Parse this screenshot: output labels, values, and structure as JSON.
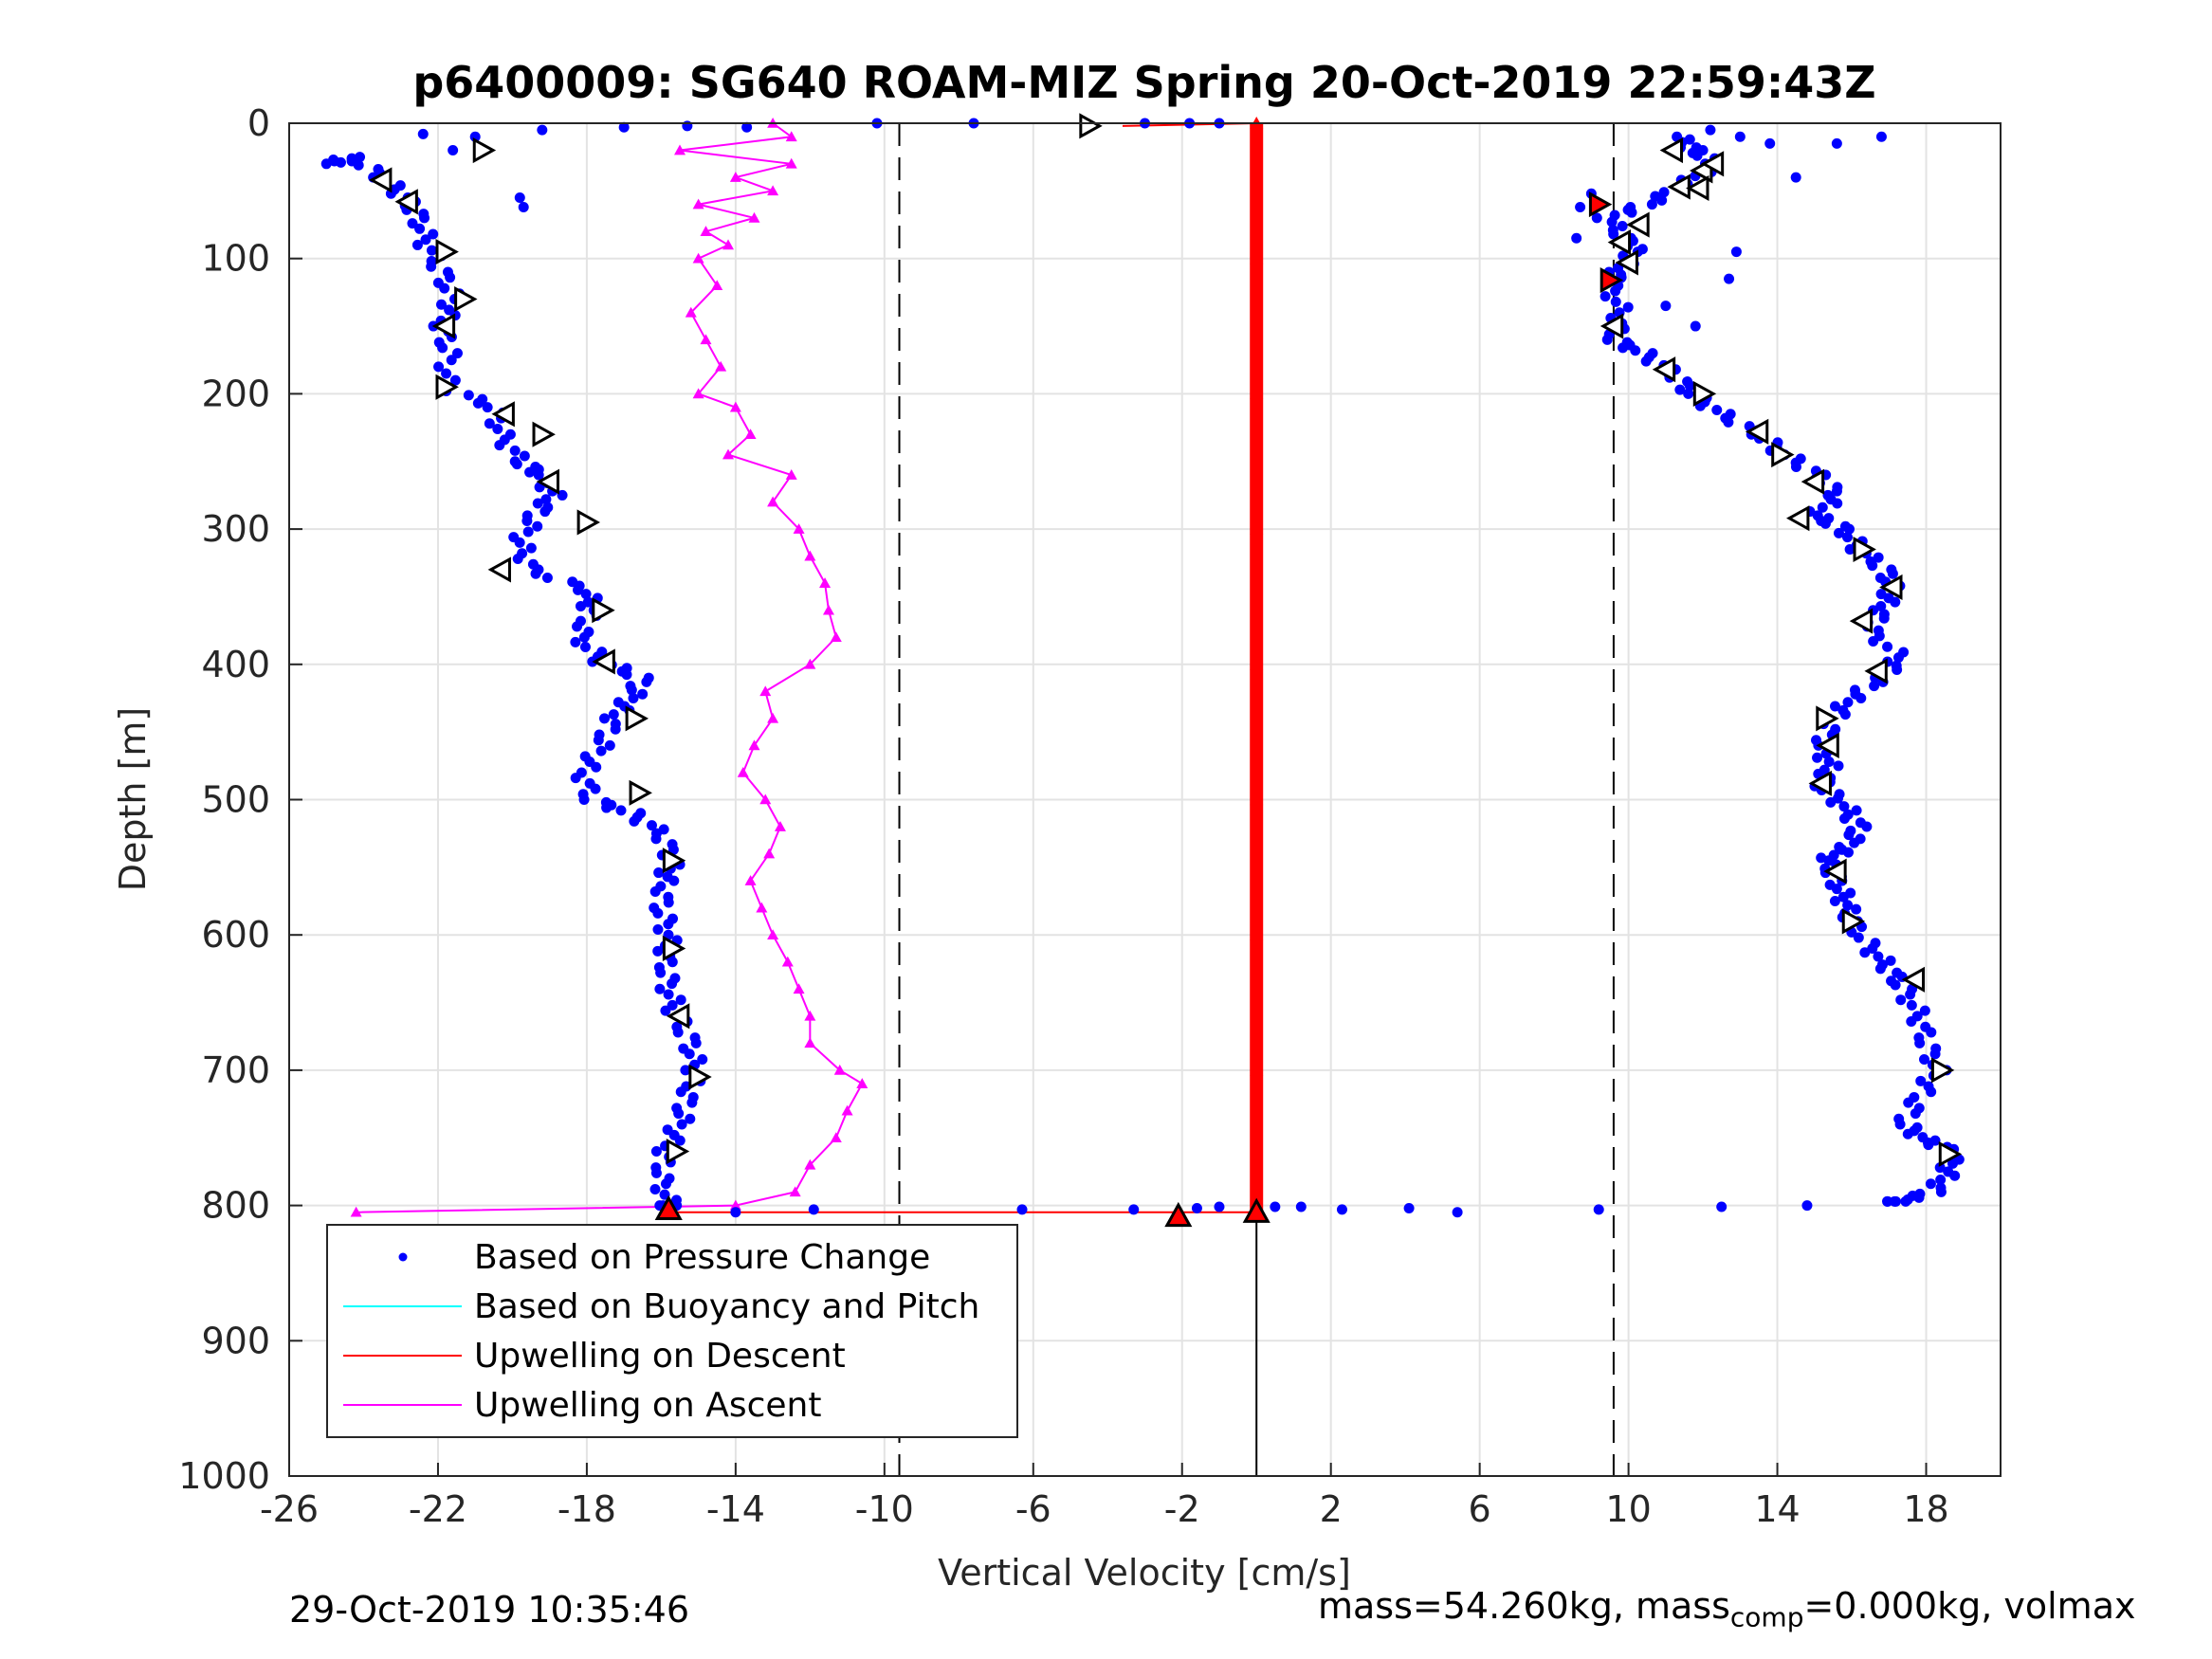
{
  "chart_data": {
    "type": "scatter",
    "title": "p6400009: SG640 ROAM-MIZ Spring 20-Oct-2019 22:59:43Z",
    "xlabel": "Vertical Velocity [cm/s]",
    "ylabel": "Depth [m]",
    "xlim": [
      -26,
      20
    ],
    "ylim": [
      0,
      1000
    ],
    "y_reversed": true,
    "grid": true,
    "x_ticks": [
      -26,
      -22,
      -18,
      -14,
      -10,
      -6,
      -2,
      2,
      6,
      10,
      14,
      18
    ],
    "y_ticks": [
      0,
      100,
      200,
      300,
      400,
      500,
      600,
      700,
      800,
      900,
      1000
    ],
    "legend_position": "bottom-left",
    "colors": {
      "pressure": "#0000ff",
      "buoyancy": "#00ffff",
      "descent": "#ff0000",
      "ascent": "#ff00ff",
      "reference": "#000000",
      "grid": "#e3e3e3"
    },
    "reference_lines": {
      "dashed_x": [
        -9.6,
        9.6
      ],
      "solid_x": 0,
      "solid_y_range": [
        805,
        1000
      ]
    },
    "series": [
      {
        "name": "Based on Pressure Change",
        "style": "dots",
        "descent": [
          [
            -25.0,
            30
          ],
          [
            -24.3,
            25
          ],
          [
            -23.5,
            40
          ],
          [
            -22.9,
            55
          ],
          [
            -22.5,
            70
          ],
          [
            -22.3,
            90
          ],
          [
            -21.9,
            110
          ],
          [
            -21.6,
            130
          ],
          [
            -21.9,
            150
          ],
          [
            -21.7,
            170
          ],
          [
            -21.8,
            195
          ],
          [
            -20.5,
            210
          ],
          [
            -20.3,
            230
          ],
          [
            -19.8,
            250
          ],
          [
            -19.2,
            260
          ],
          [
            -18.9,
            275
          ],
          [
            -19.4,
            290
          ],
          [
            -19.8,
            310
          ],
          [
            -19.5,
            330
          ],
          [
            -18.0,
            345
          ],
          [
            -17.9,
            360
          ],
          [
            -18.2,
            380
          ],
          [
            -17.6,
            398
          ],
          [
            -16.5,
            410
          ],
          [
            -16.8,
            425
          ],
          [
            -17.3,
            440
          ],
          [
            -17.6,
            460
          ],
          [
            -18.1,
            480
          ],
          [
            -17.9,
            500
          ],
          [
            -16.8,
            510
          ],
          [
            -16.0,
            525
          ],
          [
            -15.7,
            545
          ],
          [
            -15.9,
            560
          ],
          [
            -16.0,
            580
          ],
          [
            -15.8,
            600
          ],
          [
            -15.9,
            620
          ],
          [
            -15.8,
            640
          ],
          [
            -15.6,
            660
          ],
          [
            -15.2,
            680
          ],
          [
            -15.1,
            700
          ],
          [
            -15.3,
            720
          ],
          [
            -15.5,
            740
          ],
          [
            -15.9,
            760
          ],
          [
            -16.0,
            780
          ],
          [
            -15.8,
            800
          ]
        ],
        "ascent": [
          [
            11.3,
            10
          ],
          [
            11.8,
            20
          ],
          [
            12.3,
            30
          ],
          [
            11.5,
            45
          ],
          [
            10.5,
            60
          ],
          [
            9.4,
            70
          ],
          [
            9.9,
            85
          ],
          [
            10.2,
            95
          ],
          [
            9.7,
            110
          ],
          [
            9.5,
            120
          ],
          [
            9.8,
            140
          ],
          [
            9.6,
            160
          ],
          [
            10.4,
            170
          ],
          [
            11.2,
            185
          ],
          [
            11.7,
            200
          ],
          [
            12.5,
            215
          ],
          [
            13.5,
            230
          ],
          [
            14.2,
            245
          ],
          [
            15.1,
            260
          ],
          [
            15.6,
            275
          ],
          [
            15.0,
            290
          ],
          [
            15.8,
            300
          ],
          [
            16.2,
            315
          ],
          [
            16.9,
            330
          ],
          [
            17.1,
            345
          ],
          [
            16.8,
            360
          ],
          [
            16.5,
            375
          ],
          [
            17.3,
            395
          ],
          [
            16.8,
            410
          ],
          [
            16.0,
            425
          ],
          [
            15.5,
            440
          ],
          [
            15.2,
            460
          ],
          [
            15.4,
            475
          ],
          [
            15.2,
            490
          ],
          [
            15.8,
            505
          ],
          [
            16.2,
            520
          ],
          [
            15.9,
            535
          ],
          [
            15.3,
            545
          ],
          [
            15.6,
            560
          ],
          [
            15.8,
            575
          ],
          [
            16.0,
            590
          ],
          [
            16.5,
            610
          ],
          [
            17.0,
            625
          ],
          [
            17.4,
            640
          ],
          [
            17.8,
            660
          ],
          [
            18.0,
            680
          ],
          [
            18.3,
            700
          ],
          [
            17.8,
            720
          ],
          [
            17.4,
            740
          ],
          [
            18.0,
            752
          ],
          [
            18.7,
            760
          ],
          [
            18.6,
            775
          ],
          [
            18.2,
            790
          ],
          [
            17.2,
            797
          ]
        ],
        "surface_bottom": [
          [
            -10.2,
            0
          ],
          [
            -7.6,
            0
          ],
          [
            -3.0,
            0
          ],
          [
            -1.8,
            0
          ],
          [
            -1.0,
            0
          ],
          [
            -6.3,
            803
          ],
          [
            -3.3,
            803
          ],
          [
            -1.6,
            802
          ],
          [
            -1.0,
            801
          ],
          [
            0.5,
            801
          ],
          [
            1.2,
            801
          ],
          [
            2.3,
            803
          ],
          [
            4.1,
            802
          ],
          [
            5.4,
            805
          ],
          [
            9.2,
            803
          ],
          [
            12.5,
            801
          ],
          [
            14.8,
            800
          ],
          [
            -14.0,
            805
          ],
          [
            -11.9,
            803
          ],
          [
            -21.0,
            10
          ],
          [
            -21.6,
            20
          ],
          [
            -22.4,
            8
          ],
          [
            -19.2,
            5
          ],
          [
            -17.0,
            3
          ],
          [
            -15.3,
            2
          ],
          [
            -13.7,
            3
          ],
          [
            -19.8,
            55
          ],
          [
            -19.7,
            62
          ],
          [
            12.2,
            5
          ],
          [
            13.0,
            10
          ],
          [
            13.8,
            15
          ],
          [
            15.6,
            15
          ],
          [
            16.8,
            10
          ],
          [
            14.5,
            40
          ],
          [
            12.9,
            95
          ],
          [
            12.7,
            115
          ],
          [
            11.0,
            135
          ],
          [
            11.8,
            150
          ],
          [
            8.6,
            85
          ],
          [
            8.7,
            62
          ],
          [
            9.0,
            52
          ],
          [
            11.4,
            18
          ]
        ]
      },
      {
        "name": "Based on Buoyancy and Pitch",
        "style": "line",
        "points": []
      },
      {
        "name": "Upwelling on Descent",
        "style": "line-markers",
        "points": [
          [
            0.0,
            0
          ],
          [
            0.0,
            100
          ],
          [
            0.0,
            200
          ],
          [
            0.0,
            300
          ],
          [
            0.0,
            400
          ],
          [
            0.0,
            500
          ],
          [
            0.0,
            600
          ],
          [
            0.0,
            700
          ],
          [
            0.0,
            800
          ]
        ]
      },
      {
        "name": "Upwelling on Ascent",
        "style": "line-markers",
        "points": [
          [
            -13.0,
            0
          ],
          [
            -12.5,
            10
          ],
          [
            -15.5,
            20
          ],
          [
            -12.5,
            30
          ],
          [
            -14.0,
            40
          ],
          [
            -13.0,
            50
          ],
          [
            -15.0,
            60
          ],
          [
            -13.5,
            70
          ],
          [
            -14.8,
            80
          ],
          [
            -14.2,
            90
          ],
          [
            -15.0,
            100
          ],
          [
            -14.5,
            120
          ],
          [
            -15.2,
            140
          ],
          [
            -14.8,
            160
          ],
          [
            -14.4,
            180
          ],
          [
            -15.0,
            200
          ],
          [
            -14.0,
            210
          ],
          [
            -13.6,
            230
          ],
          [
            -14.2,
            245
          ],
          [
            -12.5,
            260
          ],
          [
            -13.0,
            280
          ],
          [
            -12.3,
            300
          ],
          [
            -12.0,
            320
          ],
          [
            -11.6,
            340
          ],
          [
            -11.5,
            360
          ],
          [
            -11.3,
            380
          ],
          [
            -12.0,
            400
          ],
          [
            -13.2,
            420
          ],
          [
            -13.0,
            440
          ],
          [
            -13.5,
            460
          ],
          [
            -13.8,
            480
          ],
          [
            -13.2,
            500
          ],
          [
            -12.8,
            520
          ],
          [
            -13.1,
            540
          ],
          [
            -13.6,
            560
          ],
          [
            -13.3,
            580
          ],
          [
            -13.0,
            600
          ],
          [
            -12.6,
            620
          ],
          [
            -12.3,
            640
          ],
          [
            -12.0,
            660
          ],
          [
            -12.0,
            680
          ],
          [
            -11.2,
            700
          ],
          [
            -10.6,
            710
          ],
          [
            -11.0,
            730
          ],
          [
            -11.3,
            750
          ],
          [
            -12.0,
            770
          ],
          [
            -12.4,
            790
          ],
          [
            -14.0,
            800
          ],
          [
            -24.2,
            805
          ]
        ]
      }
    ],
    "glider_markers": {
      "right": [
        [
          -4.5,
          2
        ],
        [
          -20.8,
          20
        ],
        [
          -21.8,
          95
        ],
        [
          -21.3,
          130
        ],
        [
          -21.8,
          195
        ],
        [
          -19.2,
          230
        ],
        [
          -18.0,
          295
        ],
        [
          -17.6,
          360
        ],
        [
          -16.7,
          440
        ],
        [
          -16.6,
          495
        ],
        [
          -15.7,
          545
        ],
        [
          -15.7,
          610
        ],
        [
          -15.0,
          705
        ],
        [
          -15.6,
          760
        ],
        [
          12.0,
          200
        ],
        [
          14.1,
          245
        ],
        [
          16.3,
          315
        ],
        [
          15.3,
          440
        ],
        [
          16.0,
          590
        ],
        [
          18.4,
          700
        ],
        [
          18.6,
          762
        ]
      ],
      "left": [
        [
          -23.5,
          42
        ],
        [
          -22.8,
          58
        ],
        [
          -21.8,
          150
        ],
        [
          -20.2,
          215
        ],
        [
          -19.0,
          265
        ],
        [
          -20.3,
          330
        ],
        [
          -17.5,
          398
        ],
        [
          -15.5,
          660
        ],
        [
          11.2,
          20
        ],
        [
          12.0,
          35
        ],
        [
          11.4,
          47
        ],
        [
          10.3,
          75
        ],
        [
          9.8,
          88
        ],
        [
          10.0,
          103
        ],
        [
          9.6,
          150
        ],
        [
          11.0,
          182
        ],
        [
          13.5,
          228
        ],
        [
          15.0,
          265
        ],
        [
          14.6,
          292
        ],
        [
          17.1,
          343
        ],
        [
          16.3,
          368
        ],
        [
          16.7,
          405
        ],
        [
          15.4,
          460
        ],
        [
          15.2,
          488
        ],
        [
          15.6,
          553
        ],
        [
          17.7,
          633
        ],
        [
          11.9,
          48
        ],
        [
          12.3,
          30
        ]
      ],
      "red_right": [
        [
          9.2,
          60
        ],
        [
          9.5,
          116
        ]
      ],
      "red_up": [
        [
          -15.8,
          803
        ],
        [
          -2.1,
          808
        ],
        [
          0.0,
          805
        ]
      ]
    }
  }
}
